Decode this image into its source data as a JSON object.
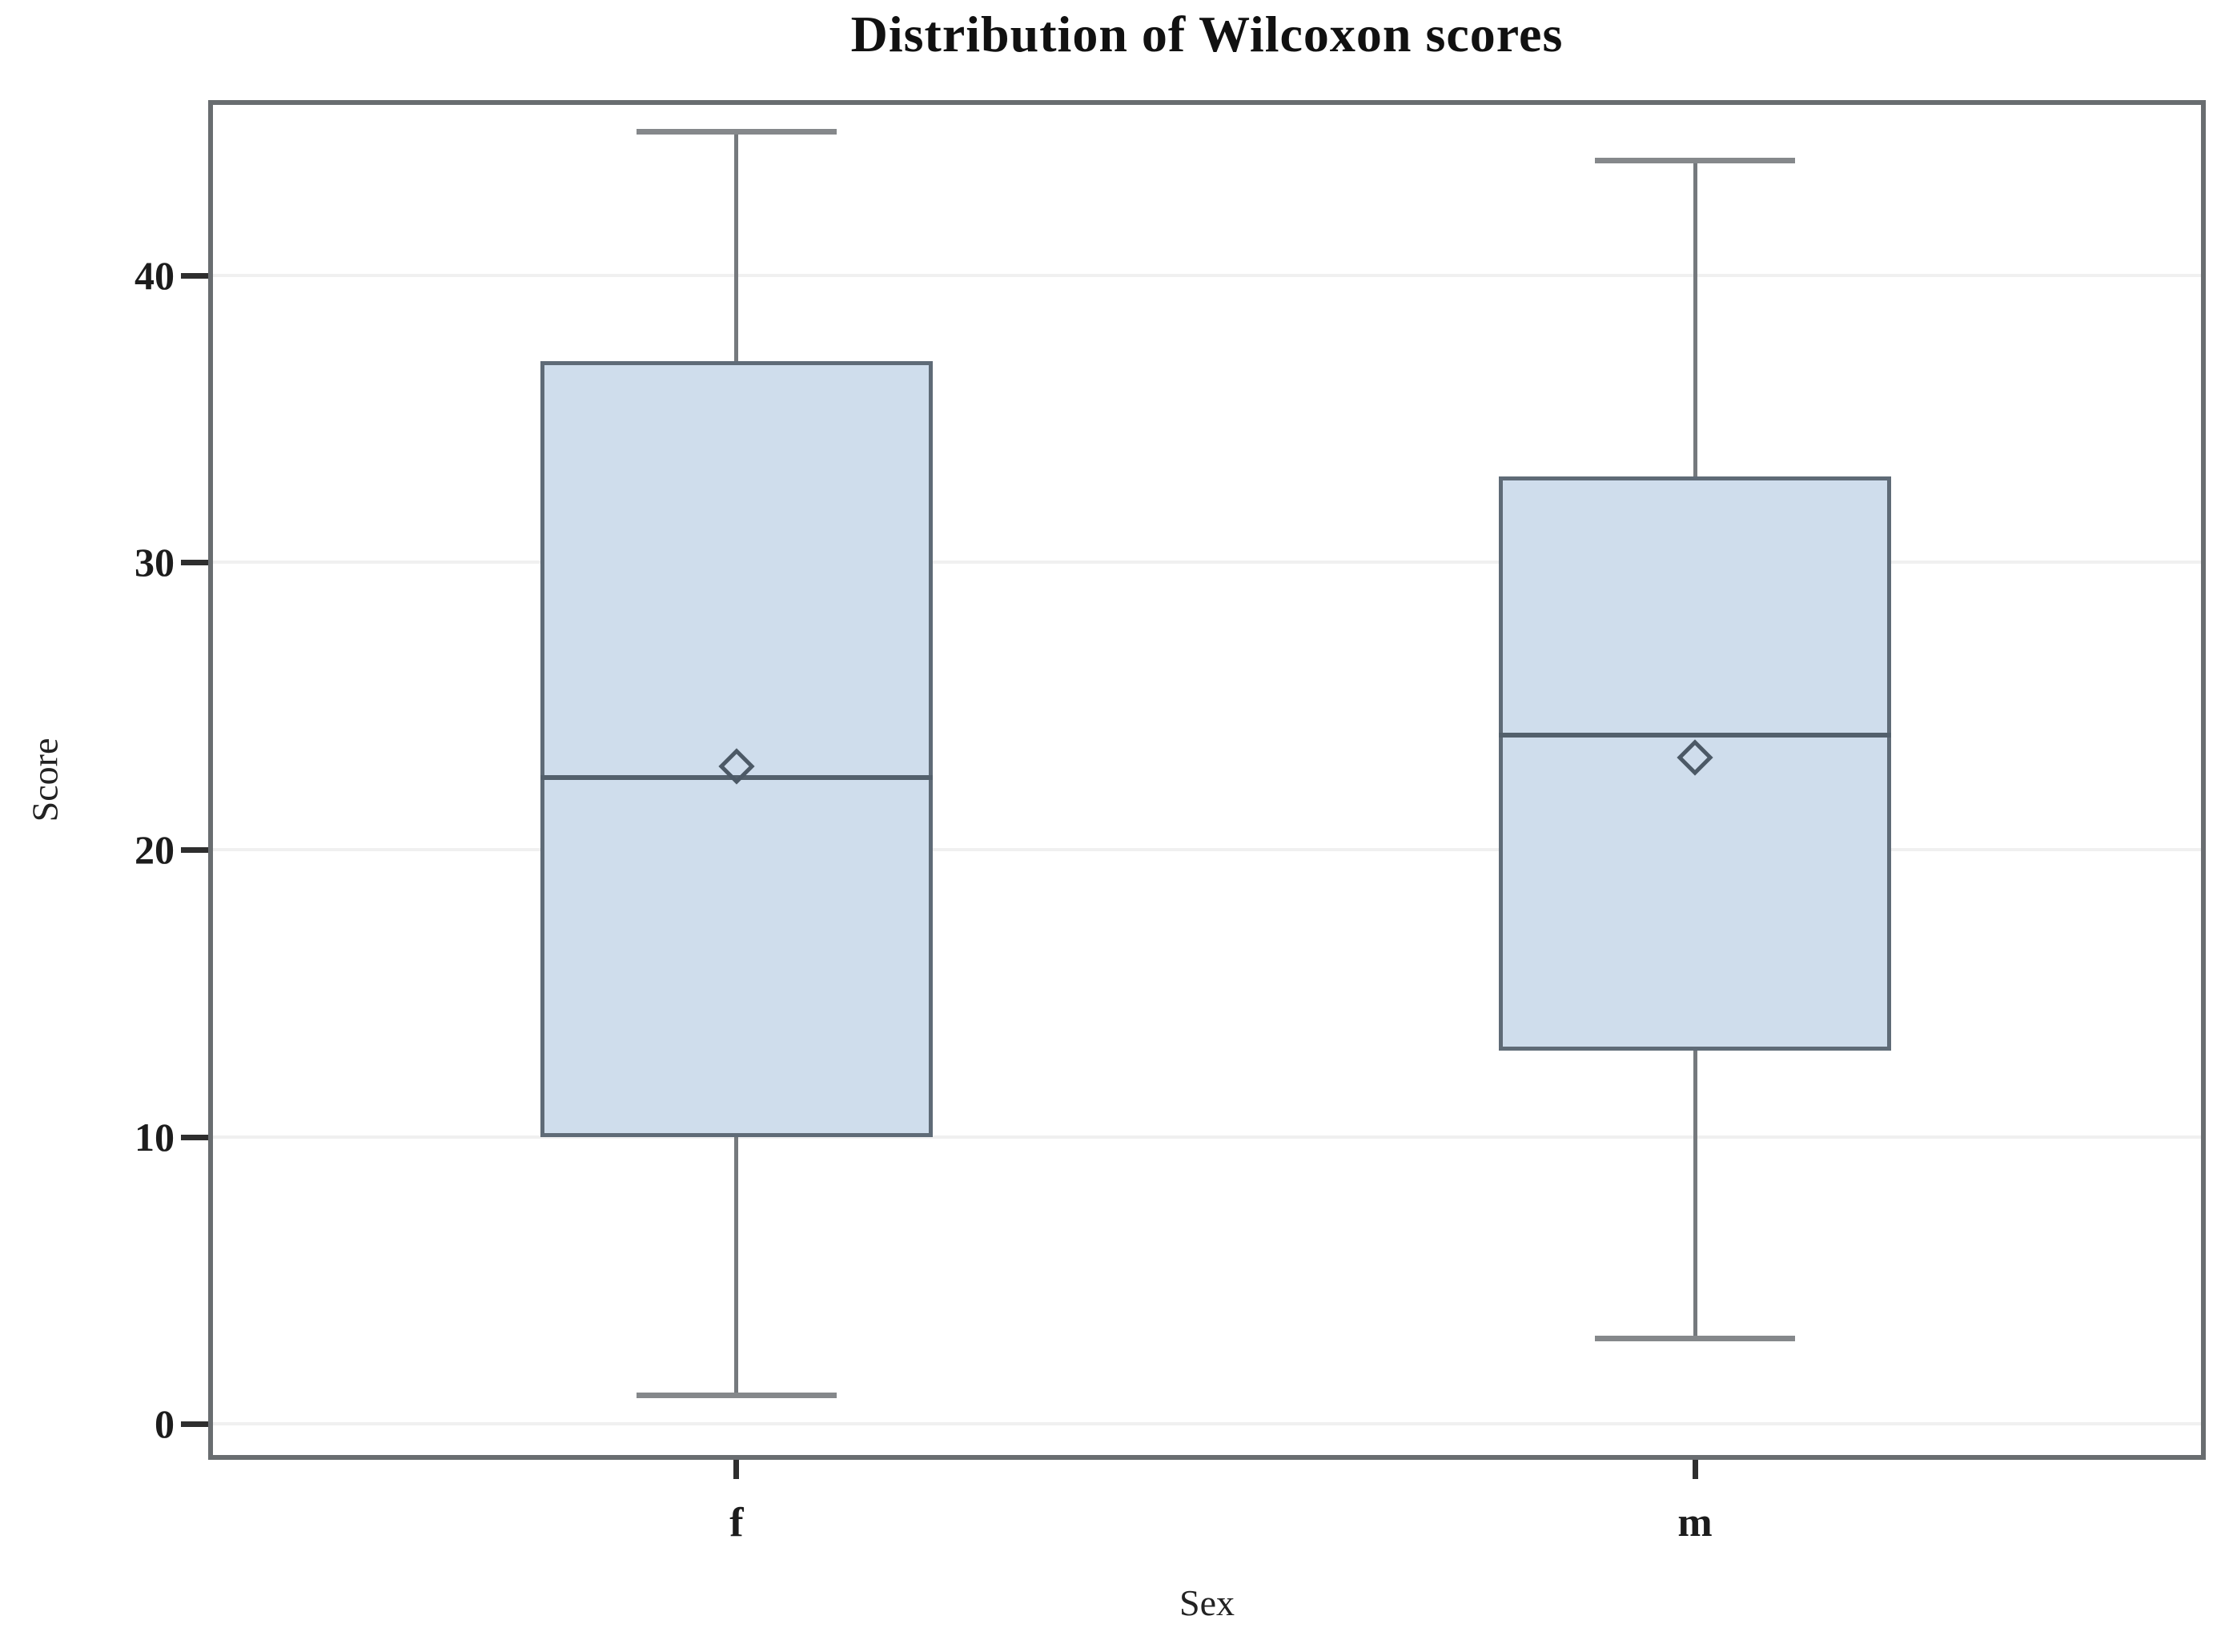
{
  "chart_data": {
    "type": "box",
    "title": "Distribution of Wilcoxon scores",
    "xlabel": "Sex",
    "ylabel": "Score",
    "categories": [
      "f",
      "m"
    ],
    "yticks": [
      0,
      10,
      20,
      30,
      40
    ],
    "ylim": [
      -1.25,
      46.1
    ],
    "grid": true,
    "legend": "none",
    "boxes": [
      {
        "category": "f",
        "whisker_low": 1,
        "q1": 10,
        "median": 22.5,
        "q3": 37,
        "whisker_high": 45,
        "mean": 22.9
      },
      {
        "category": "m",
        "whisker_low": 3,
        "q1": 13,
        "median": 24,
        "q3": 33,
        "whisker_high": 44,
        "mean": 23.2
      }
    ],
    "colors": {
      "box_fill": "#cfddec",
      "box_border": "#5f6b77",
      "median_line": "#53606c",
      "whisker": "#75797d",
      "whisker_cap": "#85888b",
      "mean_marker": "#4c5966",
      "frame": "#696d70",
      "gridline": "#f0f0f0",
      "tick": "#2e2e2e",
      "text": "#1c1c1c"
    }
  }
}
